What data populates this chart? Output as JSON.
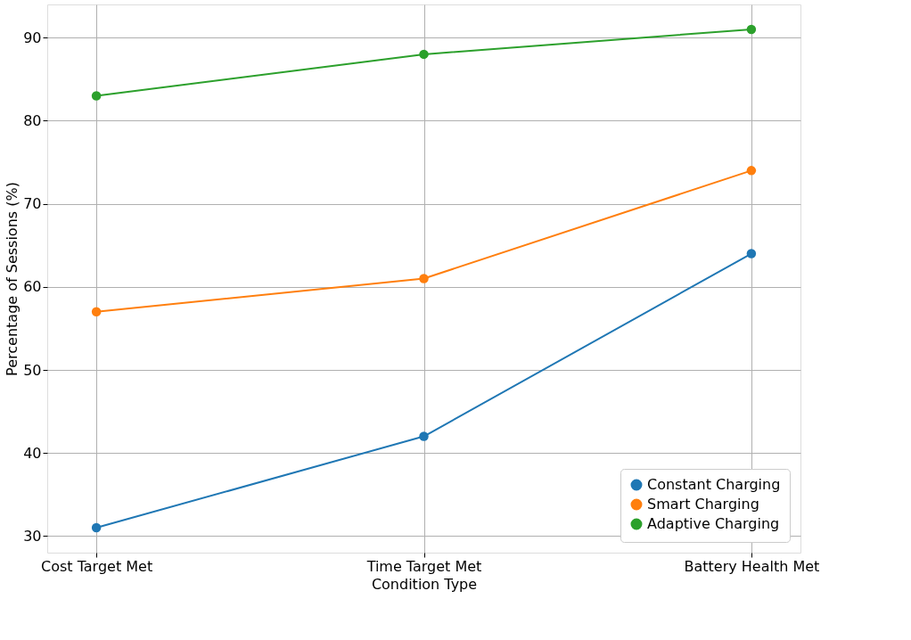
{
  "chart_data": {
    "type": "line",
    "xlabel": "Condition Type",
    "ylabel": "Percentage of Sessions (%)",
    "categories": [
      "Cost Target Met",
      "Time Target Met",
      "Battery Health Met"
    ],
    "series": [
      {
        "name": "Constant Charging",
        "color": "#1f77b4",
        "values": [
          31,
          42,
          64
        ]
      },
      {
        "name": "Smart Charging",
        "color": "#ff7f0e",
        "values": [
          57,
          61,
          74
        ]
      },
      {
        "name": "Adaptive Charging",
        "color": "#2ca02c",
        "values": [
          83,
          88,
          91
        ]
      }
    ],
    "ylim": [
      28,
      94
    ],
    "yticks": [
      30,
      40,
      50,
      60,
      70,
      80,
      90
    ],
    "grid": true,
    "legend": "bottom right",
    "marker": "circle",
    "line_style": "solid"
  }
}
